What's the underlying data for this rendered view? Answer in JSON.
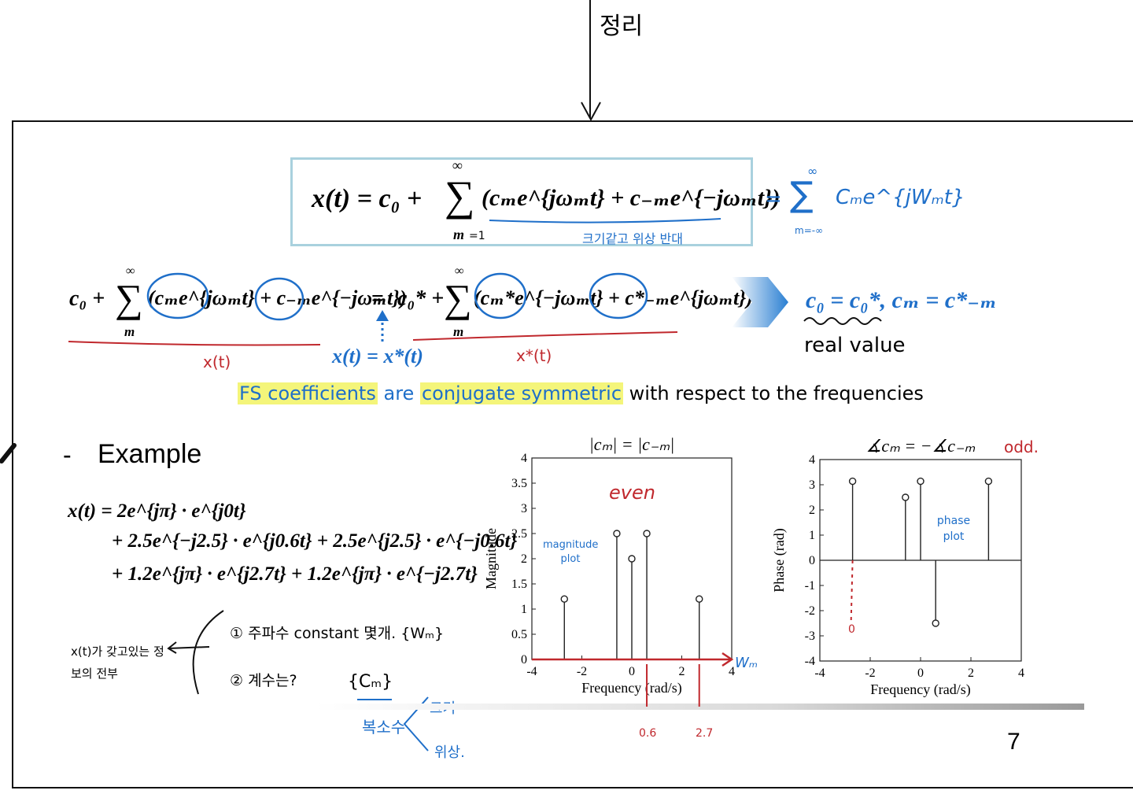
{
  "top_note": "정리",
  "box_formula": {
    "lhs": "x(t) = c₀ +",
    "sum_top": "∞",
    "sum_bottom": "m",
    "sum_bottom_note": "=1",
    "terms": "(cₘe^{jωₘt} + c₋ₘe^{−jωₘt})",
    "underline_note": "크기같고 위상 반대"
  },
  "handwritten_sum": {
    "eq": "=",
    "sum_top": "∞",
    "sum_bottom": "m=-∞",
    "body": "Cₘe^{jWₘt}"
  },
  "conj_eq": {
    "left": "c₀ +",
    "left_sum_top": "∞",
    "left_sum_bottom": "m",
    "left_terms": "(cₘe^{jωₘt} + c₋ₘe^{−jωₘt})",
    "equals": "=",
    "right": "c₀* +",
    "right_sum_top": "∞",
    "right_sum_bottom": "m",
    "right_terms": "(cₘ*e^{−jωₘt} + c*₋ₘe^{jωₘt})",
    "left_note": "x(t)",
    "right_note": "x*(t)",
    "middle_label": "x(t) = x*(t)"
  },
  "result": {
    "text": "c₀ = c₀*,  cₘ = c*₋ₘ",
    "note": "real value"
  },
  "fs_sentence": {
    "part1": "FS coefficients",
    "part2": " are ",
    "part3": "conjugate symmetric",
    "part4": " with respect to the frequencies"
  },
  "example": {
    "dash": "-",
    "title": "Example",
    "line1": "x(t) = 2e^{jπ} · e^{j0t}",
    "line2": "+ 2.5e^{−j2.5} · e^{j0.6t} + 2.5e^{j2.5} · e^{−j0.6t}",
    "line3": "+ 1.2e^{jπ} · e^{j2.7t} + 1.2e^{jπ} · e^{−j2.7t}"
  },
  "handnotes": {
    "left": "x(t)가 갖고있는 정보의 전부",
    "item1": "① 주파수 constant 몇개. {Wₘ}",
    "item2": "② 계수는?",
    "cm": "{Cₘ}",
    "complex": "복소수",
    "mag": "크기",
    "phase": "위상."
  },
  "colors": {
    "accent_blue": "#1f6fc9",
    "accent_red": "#c0282d",
    "highlight": "#f4f57a",
    "box_border": "#a9d1de"
  },
  "chart_data": [
    {
      "type": "stem",
      "title": "|cₘ| = |c₋ₘ|",
      "xlabel": "Frequency (rad/s)",
      "ylabel": "Magnitude",
      "xlim": [
        -4,
        4
      ],
      "ylim": [
        0,
        4
      ],
      "xticks": [
        "-4",
        "-2",
        "0",
        "2",
        "4"
      ],
      "yticks": [
        "0",
        "0.5",
        "1",
        "1.5",
        "2",
        "2.5",
        "3",
        "3.5",
        "4"
      ],
      "x": [
        -2.7,
        -0.6,
        0,
        0.6,
        2.7
      ],
      "y": [
        1.2,
        2.5,
        2,
        2.5,
        1.2
      ],
      "annotations": {
        "even": "even",
        "plot_note": "magnitude plot",
        "axis_note": "Wₘ",
        "mark1": "0.6",
        "mark2": "2.7"
      }
    },
    {
      "type": "stem",
      "title": "∡cₘ = −∡c₋ₘ",
      "xlabel": "Frequency (rad/s)",
      "ylabel": "Phase (rad)",
      "xlim": [
        -4,
        4
      ],
      "ylim": [
        -4,
        4
      ],
      "xticks": [
        "-4",
        "-2",
        "0",
        "2",
        "4"
      ],
      "yticks": [
        "-4",
        "-3",
        "-2",
        "-1",
        "0",
        "1",
        "2",
        "3",
        "4"
      ],
      "x": [
        -2.7,
        -0.6,
        0,
        0.6,
        2.7
      ],
      "y": [
        3.14,
        2.5,
        3.14,
        -2.5,
        3.14
      ],
      "annotations": {
        "odd": "odd.",
        "plot_note": "phase plot",
        "zero_note": "0"
      }
    }
  ],
  "page_number": "7"
}
